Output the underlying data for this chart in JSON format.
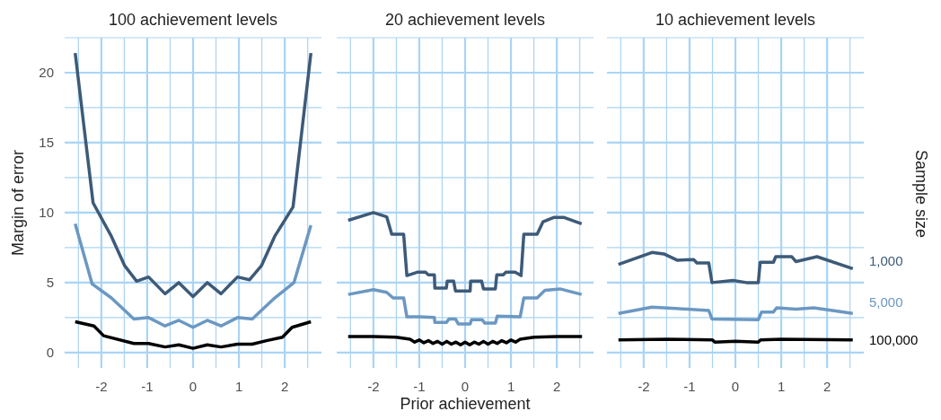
{
  "chart_data": [
    {
      "type": "line",
      "title": "100 achievement levels",
      "ylabel": "Margin of error",
      "xlim": [
        -2.8,
        2.8
      ],
      "ylim": [
        -1.1,
        22.5
      ],
      "grid": true,
      "line_style": "solid",
      "marker": "none",
      "xticks": [
        {
          "value": -2.5,
          "label": null
        },
        -2,
        {
          "value": -1.5,
          "label": null
        },
        -1,
        {
          "value": -0.5,
          "label": null
        },
        0,
        {
          "value": 0.5,
          "label": null
        },
        1,
        {
          "value": 1.5,
          "label": null
        },
        2,
        {
          "value": 2.5,
          "label": null
        }
      ],
      "yticks": [
        0,
        {
          "value": 2.5,
          "label": null
        },
        5,
        {
          "value": 7.5,
          "label": null
        },
        10,
        {
          "value": 12.5,
          "label": null
        },
        15,
        {
          "value": 17.5,
          "label": null
        },
        20,
        {
          "value": 22.5,
          "label": null
        }
      ],
      "series": [
        {
          "color": "#3d5a78",
          "x": [
            -2.57,
            -2.18,
            -1.78,
            -1.49,
            -1.23,
            -0.97,
            -0.61,
            -0.31,
            0,
            0.31,
            0.61,
            0.97,
            1.23,
            1.49,
            1.78,
            2.18,
            2.57
          ],
          "values": [
            21.4,
            10.7,
            8.3,
            6.2,
            5.1,
            5.4,
            4.2,
            5.0,
            4.0,
            5.0,
            4.2,
            5.4,
            5.2,
            6.2,
            8.3,
            10.4,
            21.4
          ]
        },
        {
          "color": "#6b98c2",
          "x": [
            -2.57,
            -2.2,
            -1.78,
            -1.29,
            -0.97,
            -0.61,
            -0.31,
            0,
            0.31,
            0.61,
            0.97,
            1.29,
            1.78,
            2.2,
            2.57
          ],
          "values": [
            9.2,
            4.9,
            3.9,
            2.4,
            2.5,
            1.9,
            2.3,
            1.8,
            2.3,
            1.9,
            2.5,
            2.4,
            3.9,
            5.0,
            9.1
          ]
        },
        {
          "color": "#000000",
          "x": [
            -2.57,
            -2.16,
            -1.95,
            -1.29,
            -0.97,
            -0.61,
            -0.31,
            0,
            0.31,
            0.61,
            0.97,
            1.29,
            1.6,
            1.95,
            2.16,
            2.57
          ],
          "values": [
            2.2,
            1.9,
            1.2,
            0.65,
            0.65,
            0.4,
            0.55,
            0.3,
            0.55,
            0.4,
            0.6,
            0.6,
            0.85,
            1.1,
            1.8,
            2.2
          ]
        }
      ]
    },
    {
      "type": "line",
      "title": "20 achievement levels",
      "xlabel": "Prior achievement",
      "xlim": [
        -2.8,
        2.8
      ],
      "ylim": [
        -1.1,
        22.5
      ],
      "grid": true,
      "tick_labels": "x",
      "line_style": "solid",
      "marker": "none",
      "xticks": [
        {
          "value": -2.5,
          "label": null
        },
        -2,
        {
          "value": -1.5,
          "label": null
        },
        -1,
        {
          "value": -0.5,
          "label": null
        },
        0,
        {
          "value": 0.5,
          "label": null
        },
        1,
        {
          "value": 1.5,
          "label": null
        },
        2,
        {
          "value": 2.5,
          "label": null
        }
      ],
      "yticks": [
        0,
        {
          "value": 2.5,
          "label": null
        },
        5,
        {
          "value": 7.5,
          "label": null
        },
        10,
        {
          "value": 12.5,
          "label": null
        },
        15,
        {
          "value": 17.5,
          "label": null
        },
        20,
        {
          "value": 22.5,
          "label": null
        }
      ],
      "series": [
        {
          "color": "#3d5a78",
          "x": [
            -2.55,
            -2,
            -1.71,
            -1.6,
            -1.34,
            -1.27,
            -1.03,
            -0.87,
            -0.8,
            -0.67,
            -0.66,
            -0.41,
            -0.39,
            -0.25,
            -0.21,
            0.11,
            0.12,
            0.36,
            0.4,
            0.66,
            0.69,
            0.83,
            0.89,
            1.09,
            1.22,
            1.28,
            1.57,
            1.7,
            1.93,
            2.16,
            2.54
          ],
          "values": [
            9.45,
            10.0,
            9.7,
            8.45,
            8.45,
            5.5,
            5.75,
            5.75,
            5.55,
            5.55,
            4.6,
            4.6,
            5.1,
            5.1,
            4.4,
            4.4,
            5.1,
            5.1,
            4.55,
            4.55,
            5.55,
            5.55,
            5.75,
            5.75,
            5.5,
            8.45,
            8.45,
            9.35,
            9.65,
            9.65,
            9.2
          ]
        },
        {
          "color": "#6b98c2",
          "x": [
            -2.55,
            -2,
            -1.71,
            -1.57,
            -1.34,
            -1.27,
            -0.99,
            -0.67,
            -0.66,
            -0.41,
            -0.35,
            -0.21,
            -0.15,
            0.11,
            0.14,
            0.37,
            0.43,
            0.66,
            0.7,
            1.2,
            1.28,
            1.57,
            1.74,
            2.07,
            2.54
          ],
          "values": [
            4.15,
            4.5,
            4.3,
            3.9,
            3.9,
            2.55,
            2.55,
            2.5,
            2.15,
            2.15,
            2.4,
            2.4,
            2.05,
            2.05,
            2.35,
            2.35,
            2.1,
            2.1,
            2.6,
            2.55,
            3.9,
            3.9,
            4.45,
            4.55,
            4.15
          ]
        },
        {
          "color": "#000000",
          "x": [
            -2.55,
            -2,
            -1.5,
            -1.2,
            -1.1,
            -1.0,
            -0.9,
            -0.8,
            -0.7,
            -0.6,
            -0.5,
            -0.4,
            -0.3,
            -0.2,
            -0.1,
            0,
            0.1,
            0.2,
            0.3,
            0.4,
            0.5,
            0.6,
            0.7,
            0.8,
            0.9,
            1.0,
            1.1,
            1.2,
            1.5,
            2,
            2.55
          ],
          "values": [
            1.15,
            1.15,
            1.1,
            0.95,
            0.75,
            0.9,
            0.7,
            0.85,
            0.65,
            0.8,
            0.6,
            0.8,
            0.6,
            0.75,
            0.55,
            0.75,
            0.55,
            0.75,
            0.6,
            0.8,
            0.6,
            0.8,
            0.65,
            0.85,
            0.7,
            0.9,
            0.75,
            0.95,
            1.1,
            1.15,
            1.15
          ]
        }
      ]
    },
    {
      "type": "line",
      "title": "10 achievement levels",
      "legend_title": "Sample size",
      "xlim": [
        -2.8,
        2.8
      ],
      "ylim": [
        -1.1,
        22.5
      ],
      "grid": true,
      "tick_labels": "x",
      "line_style": "solid",
      "marker": "none",
      "xticks": [
        {
          "value": -2.5,
          "label": null
        },
        -2,
        {
          "value": -1.5,
          "label": null
        },
        -1,
        {
          "value": -0.5,
          "label": null
        },
        0,
        {
          "value": 0.5,
          "label": null
        },
        1,
        {
          "value": 1.5,
          "label": null
        },
        2,
        {
          "value": 2.5,
          "label": null
        }
      ],
      "yticks": [
        0,
        {
          "value": 2.5,
          "label": null
        },
        5,
        {
          "value": 7.5,
          "label": null
        },
        10,
        {
          "value": 12.5,
          "label": null
        },
        15,
        {
          "value": 17.5,
          "label": null
        },
        20,
        {
          "value": 22.5,
          "label": null
        }
      ],
      "series": [
        {
          "name": "1,000",
          "color": "#3d5a78",
          "x": [
            -2.55,
            -1.82,
            -1.56,
            -1.27,
            -0.91,
            -0.84,
            -0.58,
            -0.51,
            -0.05,
            0.24,
            0.5,
            0.54,
            0.83,
            0.88,
            1.23,
            1.32,
            1.78,
            2.56
          ],
          "values": [
            6.3,
            7.15,
            7.05,
            6.6,
            6.65,
            6.4,
            6.4,
            5.0,
            5.15,
            5.0,
            5.0,
            6.45,
            6.45,
            6.85,
            6.85,
            6.5,
            6.85,
            6.0
          ]
        },
        {
          "name": "5,000",
          "color": "#6b98c2",
          "x": [
            -2.55,
            -1.82,
            -1.29,
            -0.58,
            -0.51,
            0.5,
            0.57,
            0.83,
            0.9,
            1.32,
            1.71,
            2.56
          ],
          "values": [
            2.8,
            3.25,
            3.15,
            3.0,
            2.4,
            2.35,
            2.9,
            2.9,
            3.2,
            3.1,
            3.2,
            2.8
          ]
        },
        {
          "name": "100,000",
          "color": "#000000",
          "x": [
            -2.55,
            -1.5,
            -0.5,
            -0.45,
            0,
            0.5,
            0.55,
            1,
            2.56
          ],
          "values": [
            0.9,
            0.95,
            0.9,
            0.75,
            0.8,
            0.75,
            0.9,
            0.95,
            0.9
          ]
        }
      ]
    }
  ]
}
